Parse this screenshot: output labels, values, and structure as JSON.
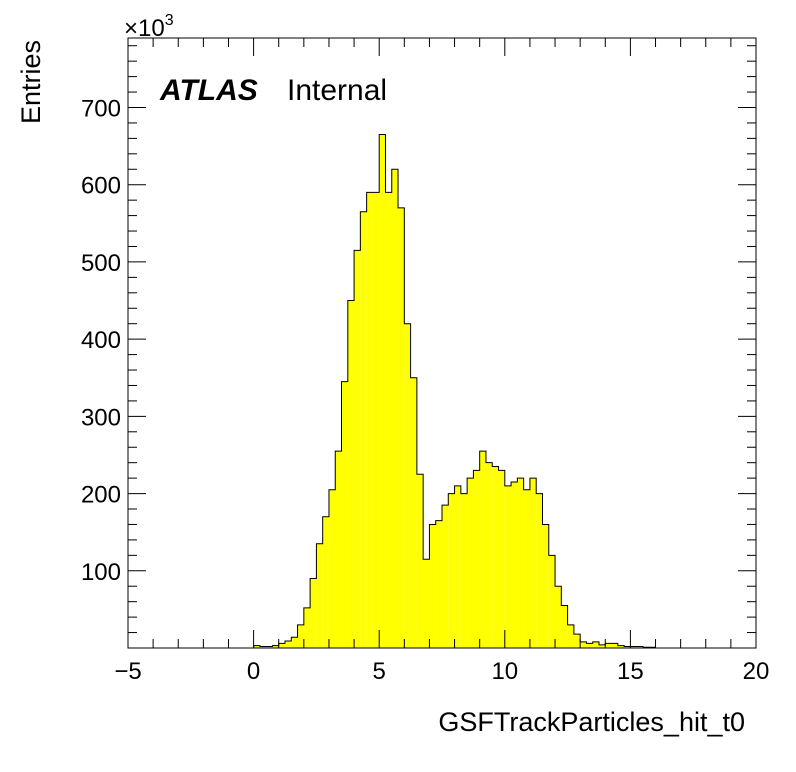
{
  "chart_data": {
    "type": "bar",
    "title": "",
    "xlabel": "GSFTrackParticles_hit_t0",
    "ylabel": "Entries",
    "multiplier_label": "×10",
    "multiplier_exponent": "3",
    "watermark": {
      "bold": "ATLAS",
      "text": "Internal"
    },
    "xlim": [
      -5,
      20
    ],
    "ylim": [
      0,
      790
    ],
    "x_ticks": [
      -5,
      0,
      5,
      10,
      15,
      20
    ],
    "x_tick_labels": [
      "−5",
      "0",
      "5",
      "10",
      "15",
      "20"
    ],
    "y_ticks": [
      100,
      200,
      300,
      400,
      500,
      600,
      700
    ],
    "y_tick_labels": [
      "100",
      "200",
      "300",
      "400",
      "500",
      "600",
      "700"
    ],
    "grid": false,
    "fill_color": "#ffff00",
    "line_color": "#000000",
    "bin_width": 0.25,
    "bins_start": 0,
    "values": [
      3,
      2,
      2,
      3,
      6,
      9,
      14,
      30,
      52,
      90,
      135,
      170,
      205,
      255,
      345,
      450,
      515,
      565,
      590,
      590,
      665,
      590,
      620,
      570,
      420,
      350,
      225,
      115,
      160,
      165,
      185,
      200,
      210,
      200,
      220,
      230,
      255,
      240,
      235,
      230,
      210,
      215,
      220,
      205,
      220,
      200,
      160,
      120,
      80,
      55,
      30,
      18,
      8,
      6,
      8,
      4,
      6,
      6,
      3,
      2,
      2,
      2,
      1,
      1,
      0,
      0,
      0,
      0
    ]
  }
}
